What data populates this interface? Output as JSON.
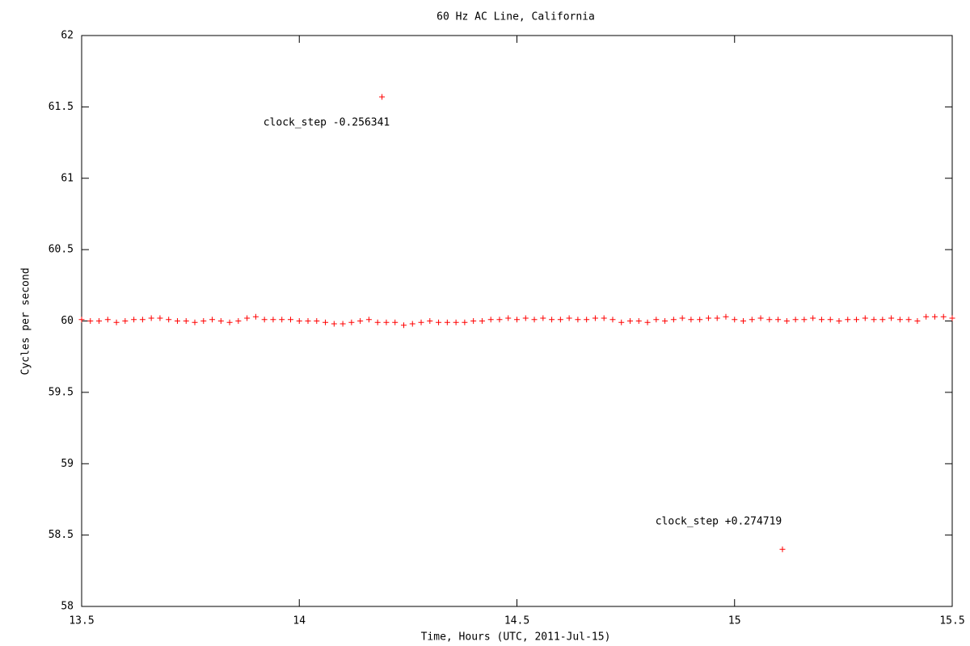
{
  "chart_data": {
    "type": "scatter",
    "title": "60 Hz AC Line, California",
    "x_label": "Time, Hours (UTC, 2011-Jul-15)",
    "y_label": "Cycles per second",
    "xlim": [
      13.5,
      15.5
    ],
    "ylim": [
      58,
      62
    ],
    "xticks": [
      13.5,
      14,
      14.5,
      15,
      15.5
    ],
    "yticks": [
      58,
      58.5,
      59,
      59.5,
      60,
      60.5,
      61,
      61.5,
      62
    ],
    "grid": false,
    "series": [
      {
        "color": "#ff0000",
        "x": [
          13.5,
          13.52,
          13.54,
          13.56,
          13.58,
          13.6,
          13.62,
          13.64,
          13.66,
          13.68,
          13.7,
          13.72,
          13.74,
          13.76,
          13.78,
          13.8,
          13.82,
          13.84,
          13.86,
          13.88,
          13.9,
          13.92,
          13.94,
          13.96,
          13.98,
          14,
          14.02,
          14.04,
          14.06,
          14.08,
          14.1,
          14.12,
          14.14,
          14.16,
          14.18,
          14.19,
          14.2,
          14.22,
          14.24,
          14.26,
          14.28,
          14.3,
          14.32,
          14.34,
          14.36,
          14.38,
          14.4,
          14.42,
          14.44,
          14.46,
          14.48,
          14.5,
          14.52,
          14.54,
          14.56,
          14.58,
          14.6,
          14.62,
          14.64,
          14.66,
          14.68,
          14.7,
          14.72,
          14.74,
          14.76,
          14.78,
          14.8,
          14.82,
          14.84,
          14.86,
          14.88,
          14.9,
          14.92,
          14.94,
          14.96,
          14.98,
          15,
          15.02,
          15.04,
          15.06,
          15.08,
          15.1,
          15.11,
          15.12,
          15.14,
          15.16,
          15.18,
          15.2,
          15.22,
          15.24,
          15.26,
          15.28,
          15.3,
          15.32,
          15.34,
          15.36,
          15.38,
          15.4,
          15.42,
          15.44,
          15.46,
          15.48,
          15.5
        ],
        "values": [
          60.01,
          60,
          60,
          60.01,
          59.99,
          60,
          60.01,
          60.01,
          60.02,
          60.02,
          60.01,
          60,
          60,
          59.99,
          60,
          60.01,
          60,
          59.99,
          60,
          60.02,
          60.03,
          60.01,
          60.01,
          60.01,
          60.01,
          60,
          60,
          60,
          59.99,
          59.98,
          59.98,
          59.99,
          60,
          60.01,
          59.99,
          61.57,
          59.99,
          59.99,
          59.97,
          59.98,
          59.99,
          60,
          59.99,
          59.99,
          59.99,
          59.99,
          60,
          60,
          60.01,
          60.01,
          60.02,
          60.01,
          60.02,
          60.01,
          60.02,
          60.01,
          60.01,
          60.02,
          60.01,
          60.01,
          60.02,
          60.02,
          60.01,
          59.99,
          60,
          60,
          59.99,
          60.01,
          60,
          60.01,
          60.02,
          60.01,
          60.01,
          60.02,
          60.02,
          60.03,
          60.01,
          60,
          60.01,
          60.02,
          60.01,
          60.01,
          58.4,
          60,
          60.01,
          60.01,
          60.02,
          60.01,
          60.01,
          60,
          60.01,
          60.01,
          60.02,
          60.01,
          60.01,
          60.02,
          60.01,
          60.01,
          60,
          60.03,
          60.03,
          60.03,
          60.02
        ]
      }
    ],
    "annotations": [
      "clock_step -0.256341",
      "clock_step +0.274719"
    ]
  }
}
